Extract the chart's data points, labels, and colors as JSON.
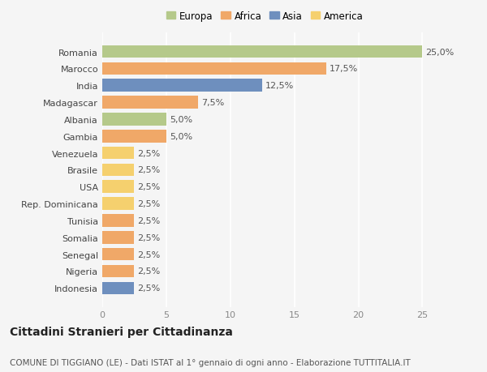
{
  "countries": [
    "Indonesia",
    "Nigeria",
    "Senegal",
    "Somalia",
    "Tunisia",
    "Rep. Dominicana",
    "USA",
    "Brasile",
    "Venezuela",
    "Gambia",
    "Albania",
    "Madagascar",
    "India",
    "Marocco",
    "Romania"
  ],
  "values": [
    2.5,
    2.5,
    2.5,
    2.5,
    2.5,
    2.5,
    2.5,
    2.5,
    2.5,
    5.0,
    5.0,
    7.5,
    12.5,
    17.5,
    25.0
  ],
  "colors": [
    "#6e8fbe",
    "#f0a868",
    "#f0a868",
    "#f0a868",
    "#f0a868",
    "#f5d06e",
    "#f5d06e",
    "#f5d06e",
    "#f5d06e",
    "#f0a868",
    "#b5c98a",
    "#f0a868",
    "#6e8fbe",
    "#f0a868",
    "#b5c98a"
  ],
  "labels": [
    "2,5%",
    "2,5%",
    "2,5%",
    "2,5%",
    "2,5%",
    "2,5%",
    "2,5%",
    "2,5%",
    "2,5%",
    "5,0%",
    "5,0%",
    "7,5%",
    "12,5%",
    "17,5%",
    "25,0%"
  ],
  "legend": {
    "Europa": "#b5c98a",
    "Africa": "#f0a868",
    "Asia": "#6e8fbe",
    "America": "#f5d06e"
  },
  "title": "Cittadini Stranieri per Cittadinanza",
  "subtitle": "COMUNE DI TIGGIANO (LE) - Dati ISTAT al 1° gennaio di ogni anno - Elaborazione TUTTITALIA.IT",
  "xlim": [
    0,
    27
  ],
  "background_color": "#f5f5f5",
  "grid_color": "#ffffff",
  "bar_height": 0.75,
  "title_fontsize": 10,
  "subtitle_fontsize": 7.5,
  "tick_fontsize": 8,
  "label_fontsize": 8
}
